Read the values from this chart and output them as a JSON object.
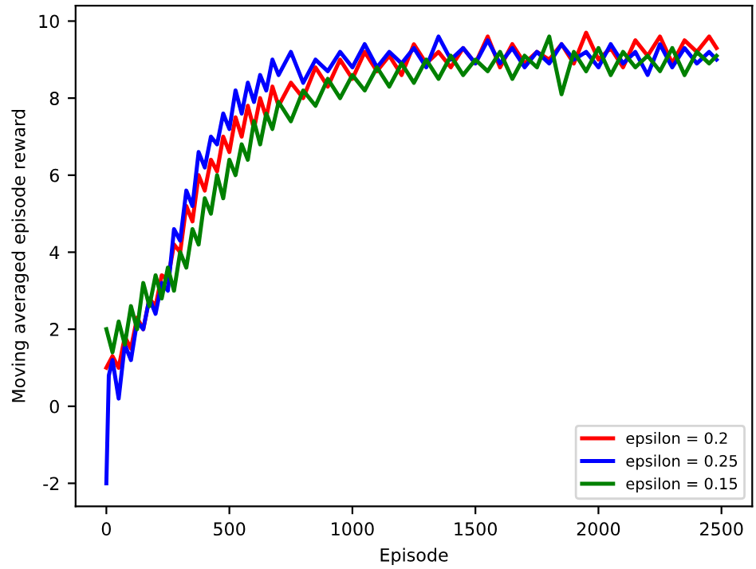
{
  "chart_data": {
    "type": "line",
    "xlabel": "Episode",
    "ylabel": "Moving averaged episode reward",
    "xlim": [
      -125,
      2625
    ],
    "ylim": [
      -2.6,
      10.4
    ],
    "xticks": [
      0,
      500,
      1000,
      1500,
      2000,
      2500
    ],
    "yticks": [
      -2,
      0,
      2,
      4,
      6,
      8,
      10
    ],
    "legend": "bottom right",
    "grid": false,
    "series": [
      {
        "name": "epsilon = 0.2",
        "color": "#ff0000",
        "x": [
          0,
          25,
          50,
          75,
          100,
          125,
          150,
          175,
          200,
          225,
          250,
          275,
          300,
          325,
          350,
          375,
          400,
          425,
          450,
          475,
          500,
          525,
          550,
          575,
          600,
          625,
          650,
          675,
          700,
          750,
          800,
          850,
          900,
          950,
          1000,
          1050,
          1100,
          1150,
          1200,
          1250,
          1300,
          1350,
          1400,
          1450,
          1500,
          1550,
          1600,
          1650,
          1700,
          1750,
          1800,
          1850,
          1900,
          1950,
          2000,
          2050,
          2100,
          2150,
          2200,
          2250,
          2300,
          2350,
          2400,
          2450,
          2480
        ],
        "values": [
          1.0,
          1.3,
          1.0,
          1.8,
          1.5,
          2.3,
          2.0,
          2.8,
          2.6,
          3.4,
          3.3,
          4.2,
          4.0,
          5.2,
          4.8,
          6.0,
          5.6,
          6.4,
          6.1,
          7.0,
          6.6,
          7.5,
          7.0,
          7.8,
          7.2,
          8.0,
          7.5,
          8.3,
          7.8,
          8.4,
          8.0,
          8.8,
          8.3,
          9.0,
          8.5,
          9.2,
          8.7,
          9.1,
          8.6,
          9.4,
          8.9,
          9.2,
          8.8,
          9.3,
          8.9,
          9.6,
          8.8,
          9.4,
          8.9,
          9.2,
          9.0,
          9.4,
          8.9,
          9.7,
          9.0,
          9.3,
          8.8,
          9.5,
          9.1,
          9.6,
          8.9,
          9.5,
          9.2,
          9.6,
          9.3
        ]
      },
      {
        "name": "epsilon = 0.25",
        "color": "#0000ff",
        "x": [
          0,
          10,
          25,
          50,
          75,
          100,
          125,
          150,
          175,
          200,
          225,
          250,
          275,
          300,
          325,
          350,
          375,
          400,
          425,
          450,
          475,
          500,
          525,
          550,
          575,
          600,
          625,
          650,
          675,
          700,
          750,
          800,
          850,
          900,
          950,
          1000,
          1050,
          1100,
          1150,
          1200,
          1250,
          1300,
          1350,
          1400,
          1450,
          1500,
          1550,
          1600,
          1650,
          1700,
          1750,
          1800,
          1850,
          1900,
          1950,
          2000,
          2050,
          2100,
          2150,
          2200,
          2250,
          2300,
          2350,
          2400,
          2450,
          2480
        ],
        "values": [
          -2.0,
          0.8,
          1.2,
          0.2,
          1.6,
          1.2,
          2.2,
          2.0,
          2.8,
          2.4,
          3.2,
          3.0,
          4.6,
          4.3,
          5.6,
          5.2,
          6.6,
          6.2,
          7.0,
          6.8,
          7.6,
          7.2,
          8.2,
          7.6,
          8.4,
          7.9,
          8.6,
          8.2,
          9.0,
          8.6,
          9.2,
          8.4,
          9.0,
          8.7,
          9.2,
          8.8,
          9.4,
          8.8,
          9.2,
          8.9,
          9.3,
          8.8,
          9.6,
          9.0,
          9.3,
          8.9,
          9.5,
          8.9,
          9.3,
          8.8,
          9.2,
          8.9,
          9.4,
          9.0,
          9.2,
          8.8,
          9.4,
          8.9,
          9.2,
          8.6,
          9.4,
          8.8,
          9.3,
          8.9,
          9.2,
          9.0
        ]
      },
      {
        "name": "epsilon = 0.15",
        "color": "#008000",
        "x": [
          0,
          25,
          50,
          75,
          100,
          125,
          150,
          175,
          200,
          225,
          250,
          275,
          300,
          325,
          350,
          375,
          400,
          425,
          450,
          475,
          500,
          525,
          550,
          575,
          600,
          625,
          650,
          675,
          700,
          750,
          800,
          850,
          900,
          950,
          1000,
          1050,
          1100,
          1150,
          1200,
          1250,
          1300,
          1350,
          1400,
          1450,
          1500,
          1550,
          1600,
          1650,
          1700,
          1750,
          1800,
          1850,
          1900,
          1950,
          2000,
          2050,
          2100,
          2150,
          2200,
          2250,
          2300,
          2350,
          2400,
          2450,
          2480
        ],
        "values": [
          2.0,
          1.4,
          2.2,
          1.6,
          2.6,
          2.0,
          3.2,
          2.6,
          3.4,
          2.8,
          3.6,
          3.0,
          4.0,
          3.6,
          4.6,
          4.2,
          5.4,
          5.0,
          6.0,
          5.4,
          6.4,
          6.0,
          6.8,
          6.4,
          7.4,
          6.8,
          7.6,
          7.2,
          7.9,
          7.4,
          8.2,
          7.8,
          8.5,
          8.0,
          8.6,
          8.2,
          8.8,
          8.3,
          8.9,
          8.4,
          9.0,
          8.5,
          9.1,
          8.6,
          9.0,
          8.7,
          9.2,
          8.5,
          9.1,
          8.8,
          9.6,
          8.1,
          9.2,
          8.7,
          9.3,
          8.6,
          9.2,
          8.8,
          9.1,
          8.7,
          9.3,
          8.6,
          9.2,
          8.9,
          9.1
        ]
      }
    ]
  }
}
